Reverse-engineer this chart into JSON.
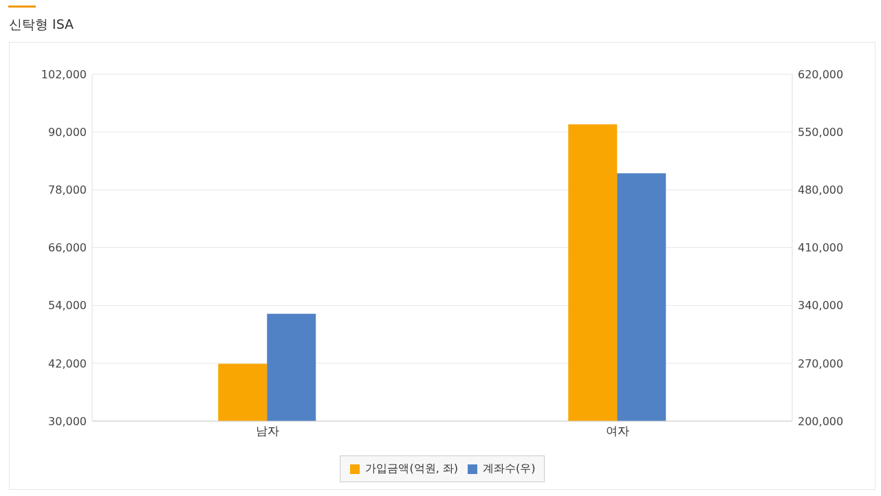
{
  "chart_data": {
    "type": "bar",
    "title": "신탁형 ISA",
    "categories": [
      "남자",
      "여자"
    ],
    "series": [
      {
        "name": "가입금액(억원, 좌)",
        "color": "#f9a602",
        "values": [
          41900,
          91600
        ]
      },
      {
        "name": "계좌수(우)",
        "color": "#5182c6",
        "values": [
          330000,
          500000
        ],
        "axis": "y2"
      }
    ],
    "ylim": [
      30000,
      102000
    ],
    "yticks": [
      {
        "value": 30000,
        "label": "30,000"
      },
      {
        "value": 42000,
        "label": "42,000"
      },
      {
        "value": 54000,
        "label": "54,000"
      },
      {
        "value": 66000,
        "label": "66,000"
      },
      {
        "value": 78000,
        "label": "78,000"
      },
      {
        "value": 90000,
        "label": "90,000"
      },
      {
        "value": 102000,
        "label": "102,000"
      }
    ],
    "y2lim": [
      200000,
      620000
    ],
    "y2ticks": [
      {
        "value": 200000,
        "label": "200,000"
      },
      {
        "value": 270000,
        "label": "270,000"
      },
      {
        "value": 340000,
        "label": "340,000"
      },
      {
        "value": 410000,
        "label": "410,000"
      },
      {
        "value": 480000,
        "label": "480,000"
      },
      {
        "value": 550000,
        "label": "550,000"
      },
      {
        "value": 620000,
        "label": "620,000"
      }
    ],
    "grid": "y",
    "legend": "bottom"
  }
}
